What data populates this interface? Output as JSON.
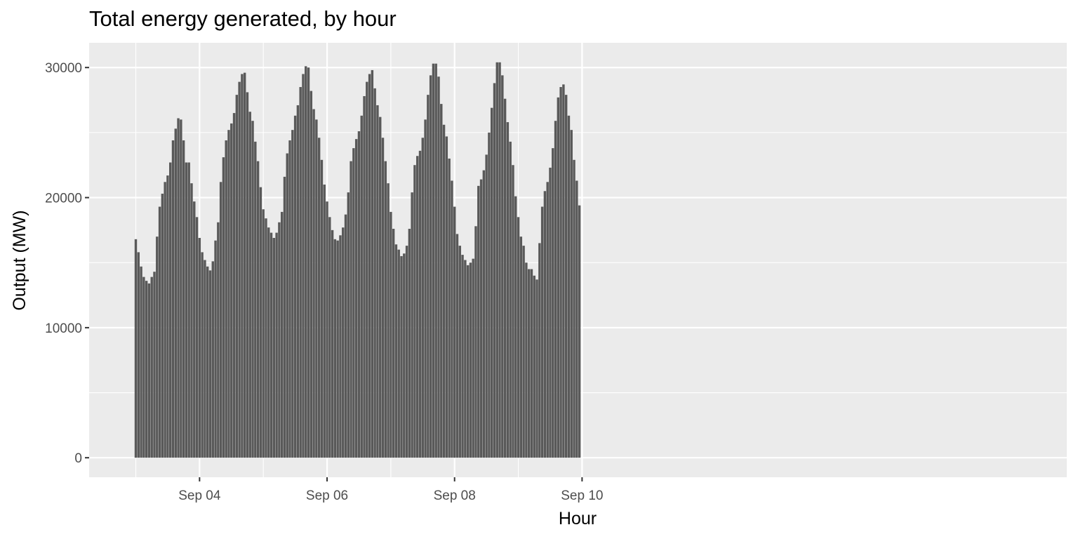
{
  "chart_data": {
    "type": "bar",
    "title": "Total energy generated, by hour",
    "xlabel": "Hour",
    "ylabel": "Output (MW)",
    "x_start": "Sep 03 00:00",
    "x_step": "1 hour",
    "x_ticks": [
      "Sep 04",
      "Sep 06",
      "Sep 08",
      "Sep 10"
    ],
    "y_ticks": [
      0,
      10000,
      20000,
      30000
    ],
    "ylim": [
      -1500,
      31900
    ],
    "grid": true,
    "colors": {
      "panel": "#ebebeb",
      "grid": "#ffffff",
      "bar": "#595959"
    },
    "values": [
      16800,
      15800,
      14700,
      13900,
      13600,
      13400,
      13900,
      14300,
      17000,
      19300,
      20300,
      21200,
      21700,
      22700,
      24400,
      25300,
      26100,
      26000,
      24400,
      22700,
      22700,
      21100,
      19700,
      18500,
      16900,
      15800,
      15200,
      14700,
      14400,
      15100,
      16700,
      18100,
      21200,
      23100,
      24400,
      25200,
      25700,
      26500,
      27900,
      28900,
      29500,
      29600,
      28100,
      26600,
      25900,
      24300,
      22800,
      20800,
      19100,
      18400,
      17700,
      17300,
      16900,
      17300,
      18100,
      18900,
      21600,
      23400,
      24400,
      25200,
      26300,
      27100,
      28500,
      29500,
      30100,
      30000,
      28200,
      26800,
      26000,
      24600,
      22900,
      21000,
      19700,
      18500,
      17500,
      16800,
      16700,
      17100,
      17700,
      18700,
      20400,
      22800,
      23800,
      24500,
      25100,
      26300,
      27800,
      28900,
      29500,
      29800,
      28400,
      27100,
      26200,
      24600,
      22800,
      21100,
      18900,
      17600,
      16400,
      16000,
      15500,
      15700,
      16300,
      17600,
      20400,
      22500,
      23200,
      23600,
      24600,
      26000,
      27900,
      29400,
      30300,
      30300,
      29300,
      27200,
      25600,
      24700,
      23000,
      21300,
      19300,
      17200,
      16300,
      15600,
      15200,
      14800,
      15000,
      15300,
      17800,
      20900,
      21400,
      22100,
      23300,
      25000,
      26900,
      28800,
      30400,
      30400,
      29400,
      27600,
      25800,
      24300,
      22500,
      20100,
      18500,
      17000,
      16300,
      15000,
      14500,
      14500,
      14000,
      13700,
      16500,
      19300,
      20500,
      21200,
      22300,
      23800,
      25900,
      27700,
      28500,
      28700,
      27900,
      26300,
      25200,
      22900,
      21300,
      19400
    ]
  }
}
